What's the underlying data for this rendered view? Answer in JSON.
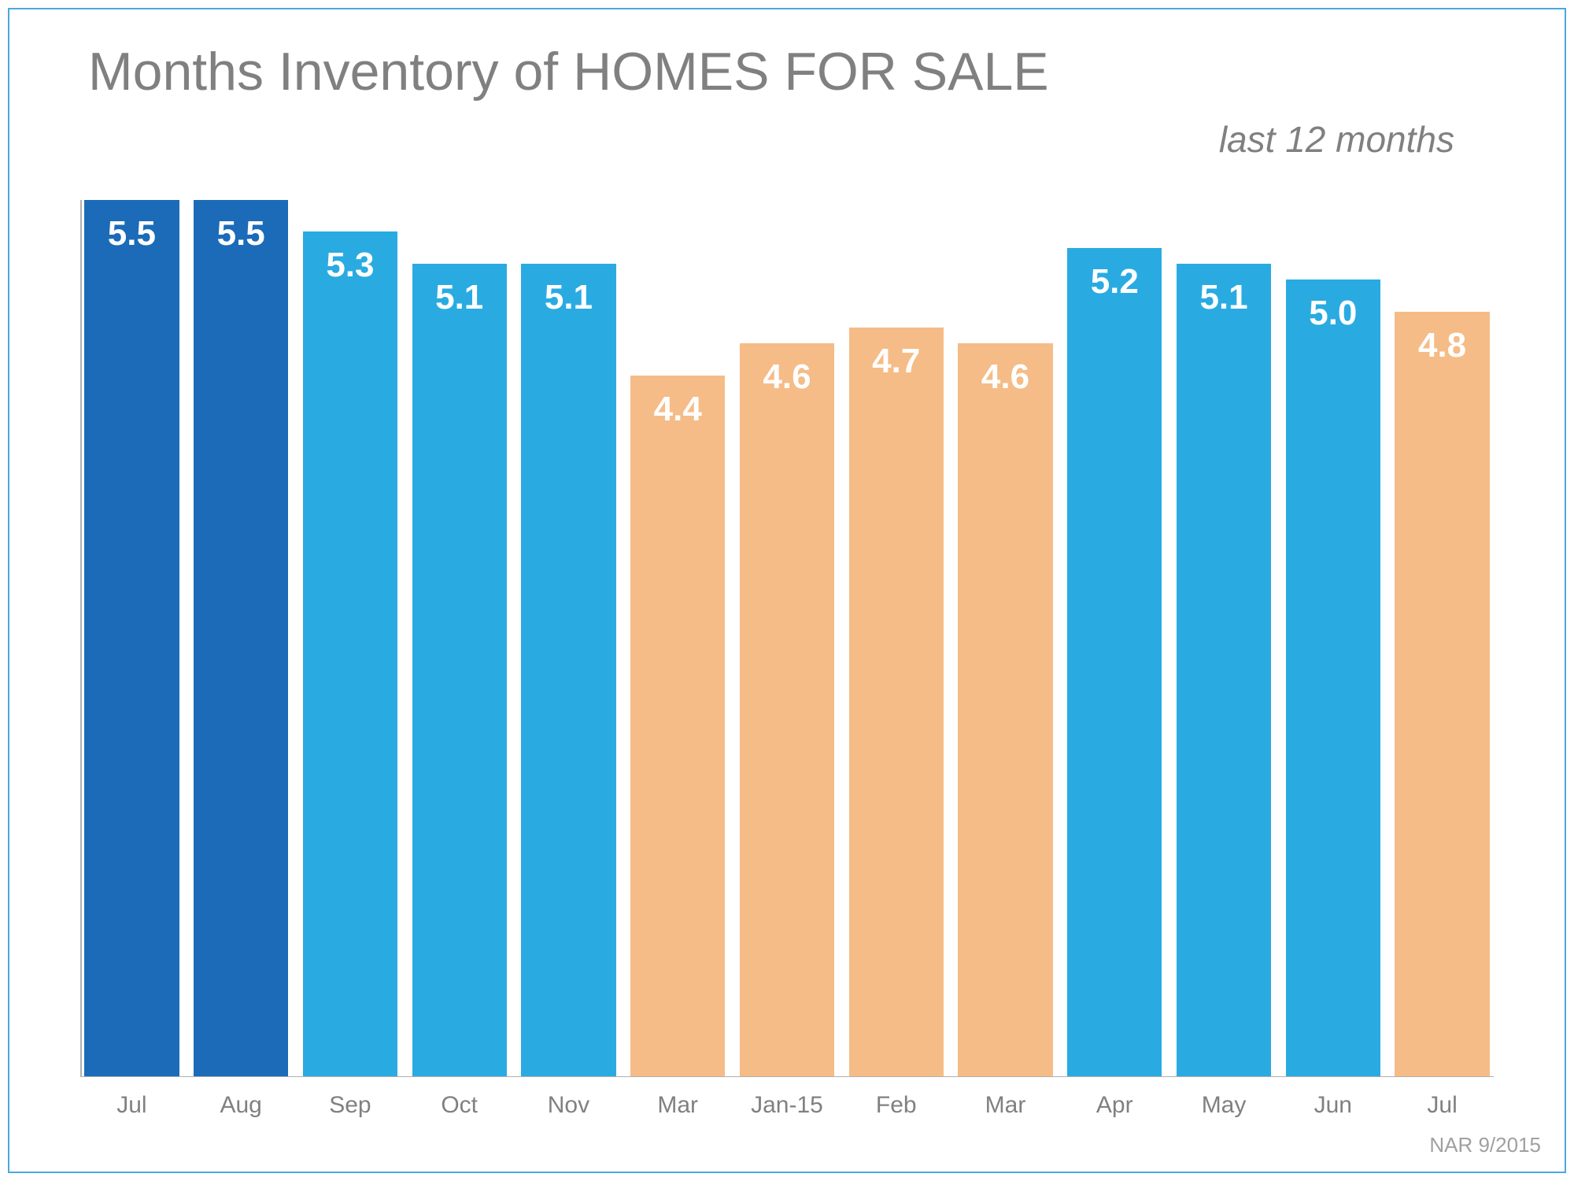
{
  "chart": {
    "type": "bar",
    "title": "Months Inventory of HOMES FOR SALE",
    "title_fontsize": 68,
    "title_color": "#808080",
    "subtitle": "last 12 months",
    "subtitle_fontsize": 46,
    "subtitle_color": "#808080",
    "background_color": "#ffffff",
    "border_color": "#4aa8e0",
    "axis_line_color": "#b0b0b0",
    "ylim": [
      0,
      5.5
    ],
    "bar_width": 0.92,
    "value_label_fontsize": 44,
    "value_label_color": "#ffffff",
    "value_label_fontweight": 700,
    "x_label_fontsize": 30,
    "x_label_color": "#808080",
    "colors": {
      "dark_blue": "#1b6bb8",
      "light_blue": "#29abe2",
      "orange": "#f5bc87"
    },
    "categories": [
      "Jul",
      "Aug",
      "Sep",
      "Oct",
      "Nov",
      "Mar",
      "Jan-15",
      "Feb",
      "Mar",
      "Apr",
      "May",
      "Jun",
      "Jul"
    ],
    "values": [
      5.5,
      5.5,
      5.3,
      5.1,
      5.1,
      4.4,
      4.6,
      4.7,
      4.6,
      5.2,
      5.1,
      5.0,
      4.8
    ],
    "bar_colors": [
      "#1b6bb8",
      "#1b6bb8",
      "#29abe2",
      "#29abe2",
      "#29abe2",
      "#f5bc87",
      "#f5bc87",
      "#f5bc87",
      "#f5bc87",
      "#29abe2",
      "#29abe2",
      "#29abe2",
      "#f5bc87"
    ],
    "source": "NAR 9/2015",
    "source_fontsize": 26,
    "source_color": "#a0a0a0"
  }
}
